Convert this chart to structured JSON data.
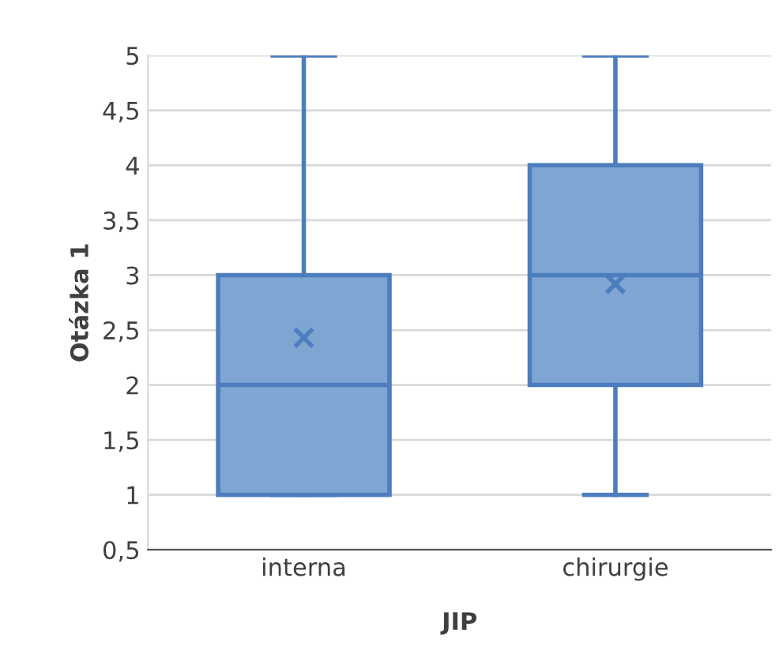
{
  "chart_data": {
    "type": "box",
    "xlabel": "JIP",
    "ylabel": "Otázka 1",
    "categories": [
      "interna",
      "chirurgie"
    ],
    "boxes": [
      {
        "low": 1,
        "q1": 1,
        "median": 2,
        "q3": 3,
        "high": 5,
        "mean": 2.43
      },
      {
        "low": 1,
        "q1": 2,
        "median": 3,
        "q3": 4,
        "high": 5,
        "mean": 2.92
      }
    ],
    "color": "#7fa6d3",
    "marker": "cross",
    "ylim": [
      0.5,
      5
    ],
    "yticks": [
      {
        "value": 0.5,
        "label": "0,5"
      },
      1,
      {
        "value": 1.5,
        "label": "1,5"
      },
      2,
      {
        "value": 2.5,
        "label": "2,5"
      },
      3,
      {
        "value": 3.5,
        "label": "3,5"
      },
      4,
      {
        "value": 4.5,
        "label": "4,5"
      },
      5
    ],
    "grid": "y"
  }
}
